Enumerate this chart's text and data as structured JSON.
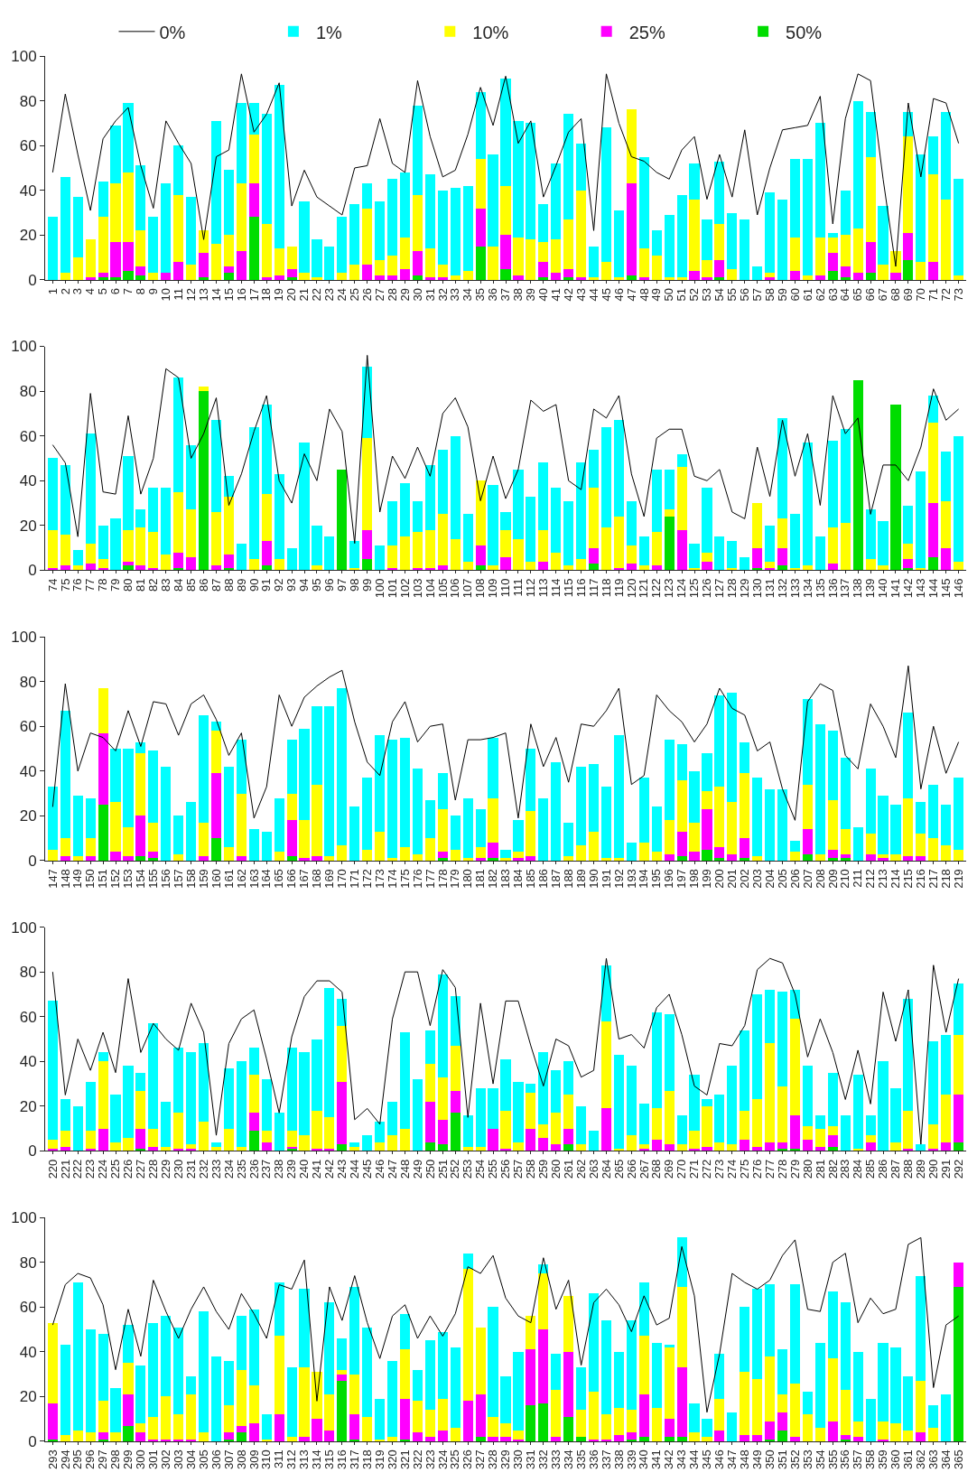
{
  "chart_data": [
    {
      "type": "bar",
      "stacked": true,
      "legend": "top",
      "marker": "none",
      "line_style": "solid",
      "ylim": [
        0,
        100
      ],
      "yticks": [
        0,
        20,
        40,
        60,
        80,
        100
      ],
      "categories": [
        "1",
        "2",
        "3",
        "4",
        "5",
        "6",
        "7",
        "8",
        "9",
        "10",
        "11",
        "12",
        "13",
        "14",
        "15",
        "16",
        "17",
        "18",
        "19",
        "20",
        "21",
        "22",
        "23",
        "24",
        "25",
        "26",
        "27",
        "28",
        "29",
        "30",
        "31",
        "32",
        "33",
        "34",
        "35",
        "36",
        "37",
        "38",
        "39",
        "40",
        "41",
        "42",
        "43",
        "44",
        "45",
        "46",
        "47",
        "48",
        "49",
        "50",
        "51",
        "52",
        "53",
        "54",
        "55",
        "56",
        "57",
        "58",
        "59",
        "60",
        "61",
        "62",
        "63",
        "64",
        "65",
        "66",
        "67",
        "68",
        "69",
        "70",
        "71",
        "72",
        "73"
      ],
      "series": [
        {
          "name": "50%",
          "color": "#00dd00",
          "values": [
            0,
            0,
            0,
            0,
            1,
            1,
            4,
            2,
            0,
            0,
            0,
            0,
            1,
            0,
            3,
            0,
            28,
            0,
            0,
            1,
            0,
            0,
            0,
            0,
            0,
            0,
            0,
            0,
            0,
            2,
            0,
            0,
            0,
            0,
            15,
            0,
            5,
            0,
            0,
            1,
            0,
            1,
            0,
            0,
            0,
            0,
            2,
            0,
            0,
            0,
            0,
            0,
            0,
            1,
            0,
            0,
            0,
            0,
            0,
            0,
            0,
            0,
            4,
            1,
            0,
            3,
            0,
            0,
            9,
            0,
            0,
            0,
            0
          ]
        },
        {
          "name": "25%",
          "color": "#ff00ff",
          "values": [
            0,
            0,
            0,
            1,
            2,
            16,
            13,
            4,
            0,
            3,
            8,
            0,
            11,
            0,
            3,
            13,
            15,
            1,
            2,
            4,
            0,
            0,
            0,
            0,
            0,
            7,
            2,
            2,
            5,
            11,
            1,
            1,
            0,
            0,
            17,
            0,
            15,
            2,
            0,
            7,
            3,
            4,
            1,
            0,
            0,
            0,
            41,
            1,
            0,
            0,
            0,
            4,
            1,
            8,
            0,
            0,
            0,
            1,
            0,
            4,
            0,
            2,
            8,
            5,
            3,
            14,
            0,
            3,
            12,
            0,
            8,
            0,
            0
          ]
        },
        {
          "name": "10%",
          "color": "#ffff00",
          "values": [
            0,
            3,
            10,
            17,
            25,
            26,
            31,
            16,
            3,
            0,
            30,
            7,
            10,
            16,
            14,
            30,
            22,
            24,
            12,
            10,
            3,
            1,
            0,
            3,
            7,
            25,
            7,
            9,
            14,
            25,
            13,
            6,
            2,
            4,
            22,
            15,
            22,
            17,
            18,
            9,
            15,
            22,
            39,
            1,
            8,
            1,
            33,
            13,
            11,
            1,
            1,
            32,
            8,
            16,
            5,
            0,
            0,
            2,
            0,
            15,
            2,
            17,
            7,
            14,
            20,
            38,
            7,
            10,
            43,
            8,
            39,
            36,
            2
          ]
        },
        {
          "name": "1%",
          "color": "#00ffff",
          "values": [
            28,
            43,
            27,
            0,
            16,
            26,
            31,
            29,
            25,
            40,
            22,
            30,
            0,
            55,
            29,
            36,
            14,
            49,
            73,
            0,
            32,
            17,
            15,
            25,
            27,
            11,
            26,
            34,
            29,
            40,
            33,
            33,
            39,
            38,
            30,
            41,
            48,
            52,
            52,
            17,
            34,
            47,
            21,
            14,
            60,
            30,
            0,
            41,
            11,
            28,
            37,
            16,
            18,
            28,
            25,
            27,
            6,
            36,
            36,
            35,
            52,
            51,
            2,
            20,
            57,
            20,
            26,
            0,
            11,
            48,
            17,
            39,
            43
          ]
        },
        {
          "name": "0%",
          "type": "line",
          "color": "#000000",
          "values": [
            48,
            83,
            56,
            31,
            63,
            71,
            77,
            51,
            32,
            71,
            61,
            52,
            18,
            55,
            58,
            92,
            66,
            74,
            88,
            33,
            49,
            37,
            33,
            29,
            50,
            51,
            72,
            52,
            48,
            89,
            64,
            46,
            49,
            65,
            86,
            69,
            91,
            61,
            71,
            37,
            51,
            66,
            72,
            22,
            92,
            70,
            55,
            53,
            48,
            45,
            58,
            64,
            36,
            56,
            37,
            67,
            29,
            50,
            67,
            68,
            69,
            82,
            25,
            72,
            92,
            89,
            45,
            6,
            79,
            46,
            81,
            79,
            61
          ]
        }
      ]
    },
    {
      "type": "bar",
      "stacked": true,
      "marker": "none",
      "line_style": "solid",
      "ylim": [
        0,
        100
      ],
      "yticks": [
        0,
        20,
        40,
        60,
        80,
        100
      ],
      "categories": [
        "74",
        "75",
        "76",
        "77",
        "78",
        "79",
        "80",
        "81",
        "82",
        "83",
        "84",
        "85",
        "86",
        "87",
        "88",
        "89",
        "90",
        "91",
        "92",
        "93",
        "94",
        "95",
        "96",
        "97",
        "98",
        "99",
        "100",
        "101",
        "102",
        "103",
        "104",
        "105",
        "106",
        "107",
        "108",
        "109",
        "110",
        "111",
        "112",
        "113",
        "114",
        "115",
        "116",
        "117",
        "118",
        "119",
        "120",
        "121",
        "122",
        "123",
        "124",
        "125",
        "126",
        "127",
        "128",
        "129",
        "130",
        "131",
        "132",
        "133",
        "134",
        "135",
        "136",
        "137",
        "138",
        "139",
        "140",
        "141",
        "142",
        "143",
        "144",
        "145",
        "146"
      ],
      "series": [
        {
          "color": "#00dd00",
          "values": [
            0,
            0,
            0,
            0,
            0,
            0,
            2,
            0,
            0,
            0,
            1,
            0,
            80,
            0,
            1,
            0,
            0,
            2,
            0,
            0,
            0,
            0,
            0,
            45,
            0,
            5,
            0,
            0,
            0,
            0,
            0,
            0,
            0,
            0,
            2,
            0,
            0,
            0,
            0,
            0,
            0,
            0,
            0,
            3,
            0,
            0,
            0,
            0,
            0,
            24,
            0,
            0,
            0,
            0,
            0,
            0,
            1,
            0,
            2,
            0,
            0,
            0,
            0,
            0,
            85,
            0,
            0,
            74,
            1,
            0,
            6,
            0,
            0
          ]
        },
        {
          "color": "#ff00ff",
          "values": [
            1,
            2,
            0,
            3,
            1,
            0,
            2,
            2,
            1,
            0,
            7,
            6,
            0,
            2,
            6,
            0,
            0,
            11,
            0,
            0,
            0,
            0,
            0,
            0,
            0,
            13,
            0,
            1,
            0,
            1,
            1,
            2,
            0,
            0,
            9,
            0,
            6,
            0,
            0,
            4,
            0,
            0,
            0,
            7,
            0,
            1,
            3,
            0,
            2,
            0,
            18,
            0,
            4,
            0,
            0,
            0,
            9,
            1,
            8,
            0,
            0,
            0,
            3,
            0,
            0,
            0,
            0,
            0,
            4,
            0,
            24,
            10,
            0
          ]
        },
        {
          "color": "#ffff00",
          "values": [
            17,
            14,
            2,
            9,
            4,
            0,
            14,
            17,
            16,
            7,
            27,
            21,
            2,
            24,
            26,
            0,
            5,
            21,
            5,
            0,
            0,
            2,
            0,
            0,
            1,
            41,
            0,
            10,
            15,
            16,
            17,
            23,
            14,
            4,
            29,
            2,
            12,
            14,
            4,
            14,
            8,
            2,
            5,
            27,
            19,
            23,
            8,
            2,
            15,
            3,
            28,
            1,
            4,
            0,
            1,
            0,
            20,
            3,
            13,
            1,
            2,
            0,
            16,
            21,
            0,
            5,
            2,
            0,
            7,
            1,
            36,
            21,
            4
          ]
        },
        {
          "color": "#00ffff",
          "values": [
            32,
            31,
            7,
            49,
            15,
            23,
            33,
            8,
            20,
            30,
            51,
            29,
            0,
            41,
            9,
            12,
            59,
            40,
            38,
            10,
            57,
            18,
            15,
            0,
            12,
            32,
            11,
            20,
            24,
            14,
            29,
            29,
            46,
            21,
            0,
            36,
            8,
            31,
            29,
            30,
            29,
            29,
            43,
            17,
            45,
            43,
            20,
            13,
            28,
            18,
            6,
            11,
            29,
            15,
            12,
            6,
            0,
            16,
            45,
            24,
            55,
            15,
            39,
            42,
            0,
            22,
            20,
            0,
            17,
            43,
            12,
            22,
            56
          ]
        },
        {
          "type": "line",
          "color": "#000000",
          "values": [
            56,
            48,
            15,
            79,
            35,
            34,
            69,
            34,
            50,
            90,
            86,
            50,
            61,
            77,
            29,
            43,
            62,
            78,
            40,
            30,
            52,
            40,
            72,
            62,
            12,
            96,
            26,
            51,
            41,
            55,
            42,
            70,
            77,
            64,
            31,
            51,
            32,
            45,
            76,
            71,
            74,
            40,
            36,
            72,
            68,
            78,
            43,
            24,
            59,
            63,
            63,
            42,
            40,
            45,
            26,
            23,
            55,
            33,
            67,
            42,
            61,
            29,
            78,
            61,
            68,
            25,
            47,
            47,
            40,
            55,
            81,
            67,
            72
          ]
        }
      ]
    },
    {
      "type": "bar",
      "stacked": true,
      "marker": "none",
      "line_style": "solid",
      "ylim": [
        0,
        100
      ],
      "yticks": [
        0,
        20,
        40,
        60,
        80,
        100
      ],
      "categories": [
        "147",
        "148",
        "149",
        "150",
        "151",
        "152",
        "153",
        "154",
        "155",
        "156",
        "157",
        "158",
        "159",
        "160",
        "161",
        "162",
        "163",
        "164",
        "165",
        "166",
        "167",
        "168",
        "169",
        "170",
        "171",
        "172",
        "173",
        "174",
        "175",
        "176",
        "177",
        "178",
        "179",
        "180",
        "181",
        "182",
        "183",
        "184",
        "185",
        "186",
        "187",
        "188",
        "189",
        "190",
        "191",
        "192",
        "193",
        "194",
        "195",
        "196",
        "197",
        "198",
        "199",
        "200",
        "201",
        "202",
        "203",
        "204",
        "205",
        "206",
        "207",
        "208",
        "209",
        "210",
        "211",
        "212",
        "213",
        "214",
        "215",
        "216",
        "217",
        "218",
        "219"
      ],
      "series": [
        {
          "color": "#00dd00",
          "values": [
            0,
            0,
            0,
            0,
            25,
            0,
            0,
            2,
            1,
            0,
            0,
            0,
            0,
            10,
            0,
            0,
            0,
            0,
            0,
            2,
            0,
            0,
            0,
            0,
            0,
            0,
            0,
            0,
            0,
            0,
            0,
            1,
            0,
            0,
            0,
            1,
            0,
            0,
            0,
            0,
            0,
            0,
            0,
            0,
            0,
            0,
            0,
            0,
            0,
            0,
            2,
            0,
            5,
            1,
            0,
            1,
            0,
            0,
            0,
            0,
            3,
            0,
            1,
            1,
            0,
            0,
            0,
            0,
            0,
            0,
            0,
            0,
            0
          ]
        },
        {
          "color": "#ff00ff",
          "values": [
            0,
            2,
            0,
            2,
            32,
            4,
            2,
            18,
            3,
            0,
            0,
            0,
            2,
            29,
            0,
            2,
            0,
            0,
            0,
            16,
            1,
            2,
            0,
            0,
            0,
            0,
            0,
            0,
            0,
            0,
            0,
            3,
            0,
            0,
            1,
            7,
            0,
            1,
            2,
            0,
            0,
            0,
            0,
            0,
            0,
            0,
            0,
            0,
            0,
            3,
            11,
            4,
            18,
            5,
            3,
            9,
            0,
            0,
            0,
            0,
            11,
            0,
            4,
            2,
            0,
            3,
            1,
            0,
            2,
            2,
            0,
            0,
            0
          ]
        },
        {
          "color": "#ffff00",
          "values": [
            5,
            8,
            2,
            8,
            20,
            22,
            13,
            28,
            13,
            0,
            3,
            0,
            15,
            19,
            6,
            28,
            0,
            0,
            4,
            12,
            17,
            32,
            2,
            7,
            0,
            5,
            13,
            1,
            6,
            3,
            10,
            19,
            5,
            1,
            5,
            20,
            1,
            3,
            20,
            0,
            0,
            2,
            7,
            13,
            1,
            1,
            0,
            8,
            4,
            15,
            23,
            13,
            8,
            27,
            23,
            29,
            2,
            0,
            0,
            4,
            20,
            3,
            22,
            11,
            0,
            9,
            2,
            3,
            26,
            10,
            10,
            7,
            5
          ]
        },
        {
          "color": "#00ffff",
          "values": [
            28,
            57,
            27,
            18,
            0,
            24,
            35,
            5,
            32,
            42,
            17,
            26,
            48,
            4,
            36,
            24,
            14,
            13,
            24,
            24,
            41,
            35,
            67,
            70,
            24,
            32,
            43,
            53,
            49,
            38,
            17,
            16,
            15,
            27,
            17,
            27,
            4,
            14,
            28,
            28,
            44,
            15,
            35,
            30,
            32,
            55,
            8,
            29,
            20,
            36,
            16,
            23,
            17,
            41,
            49,
            14,
            35,
            32,
            32,
            5,
            38,
            58,
            31,
            32,
            15,
            29,
            26,
            22,
            38,
            14,
            24,
            18,
            32
          ]
        },
        {
          "type": "line",
          "color": "#000000",
          "values": [
            24,
            79,
            40,
            57,
            55,
            49,
            67,
            51,
            71,
            70,
            56,
            70,
            74,
            63,
            47,
            57,
            19,
            33,
            74,
            60,
            73,
            78,
            82,
            85,
            62,
            44,
            38,
            62,
            71,
            53,
            60,
            61,
            27,
            54,
            54,
            55,
            57,
            19,
            61,
            42,
            55,
            35,
            61,
            60,
            67,
            77,
            34,
            38,
            74,
            67,
            62,
            53,
            61,
            77,
            68,
            65,
            49,
            53,
            32,
            18,
            71,
            79,
            76,
            47,
            41,
            70,
            60,
            46,
            87,
            32,
            60,
            39,
            53
          ]
        }
      ]
    },
    {
      "type": "bar",
      "stacked": true,
      "marker": "none",
      "line_style": "solid",
      "ylim": [
        0,
        100
      ],
      "yticks": [
        0,
        20,
        40,
        60,
        80,
        100
      ],
      "categories": [
        "220",
        "221",
        "222",
        "223",
        "224",
        "225",
        "226",
        "227",
        "228",
        "229",
        "230",
        "231",
        "232",
        "233",
        "234",
        "235",
        "236",
        "237",
        "238",
        "239",
        "240",
        "241",
        "242",
        "243",
        "244",
        "245",
        "246",
        "247",
        "248",
        "249",
        "250",
        "251",
        "252",
        "253",
        "254",
        "255",
        "256",
        "257",
        "258",
        "259",
        "260",
        "261",
        "262",
        "263",
        "264",
        "265",
        "266",
        "267",
        "268",
        "269",
        "270",
        "271",
        "272",
        "273",
        "274",
        "275",
        "276",
        "277",
        "278",
        "279",
        "280",
        "281",
        "282",
        "283",
        "284",
        "285",
        "286",
        "287",
        "288",
        "289",
        "290",
        "291",
        "292"
      ],
      "series": [
        {
          "color": "#00dd00",
          "values": [
            0,
            0,
            0,
            0,
            0,
            0,
            0,
            1,
            0,
            0,
            0,
            0,
            0,
            0,
            0,
            0,
            9,
            0,
            0,
            1,
            0,
            0,
            0,
            3,
            0,
            0,
            0,
            0,
            0,
            0,
            4,
            3,
            17,
            0,
            0,
            0,
            0,
            0,
            0,
            0,
            0,
            3,
            0,
            0,
            0,
            0,
            0,
            0,
            0,
            0,
            0,
            0,
            0,
            0,
            0,
            0,
            0,
            0,
            1,
            1,
            0,
            0,
            2,
            0,
            0,
            0,
            0,
            0,
            0,
            0,
            0,
            0,
            4
          ]
        },
        {
          "color": "#ff00ff",
          "values": [
            1,
            2,
            0,
            1,
            10,
            0,
            0,
            9,
            2,
            0,
            1,
            1,
            0,
            0,
            0,
            0,
            8,
            4,
            0,
            1,
            0,
            1,
            1,
            28,
            0,
            0,
            0,
            0,
            0,
            0,
            18,
            11,
            10,
            0,
            0,
            10,
            1,
            0,
            10,
            6,
            3,
            7,
            0,
            0,
            19,
            0,
            0,
            1,
            5,
            3,
            0,
            1,
            2,
            0,
            0,
            5,
            2,
            4,
            3,
            15,
            5,
            2,
            5,
            0,
            0,
            4,
            0,
            0,
            1,
            0,
            1,
            4,
            21
          ]
        },
        {
          "color": "#ffff00",
          "values": [
            4,
            7,
            0,
            8,
            30,
            4,
            6,
            17,
            8,
            2,
            16,
            2,
            13,
            2,
            10,
            2,
            17,
            5,
            0,
            7,
            7,
            17,
            14,
            25,
            2,
            0,
            4,
            7,
            10,
            0,
            17,
            19,
            20,
            2,
            2,
            0,
            17,
            4,
            16,
            6,
            14,
            15,
            3,
            0,
            39,
            1,
            7,
            2,
            14,
            24,
            3,
            8,
            18,
            4,
            3,
            13,
            21,
            44,
            25,
            43,
            6,
            8,
            4,
            0,
            1,
            3,
            0,
            4,
            17,
            0,
            11,
            21,
            27
          ]
        },
        {
          "color": "#00ffff",
          "values": [
            62,
            14,
            20,
            22,
            4,
            21,
            32,
            8,
            47,
            20,
            29,
            41,
            35,
            2,
            27,
            38,
            12,
            23,
            17,
            37,
            37,
            32,
            58,
            12,
            2,
            7,
            9,
            15,
            43,
            32,
            15,
            46,
            22,
            14,
            26,
            18,
            23,
            27,
            4,
            32,
            19,
            15,
            17,
            9,
            25,
            42,
            31,
            18,
            43,
            34,
            13,
            25,
            3,
            21,
            35,
            36,
            47,
            24,
            42,
            13,
            27,
            6,
            24,
            16,
            33,
            9,
            40,
            24,
            50,
            3,
            37,
            27,
            23
          ]
        },
        {
          "type": "line",
          "color": "#000000",
          "values": [
            80,
            25,
            50,
            36,
            53,
            35,
            77,
            44,
            57,
            50,
            45,
            66,
            53,
            7,
            48,
            59,
            63,
            41,
            17,
            51,
            69,
            76,
            76,
            71,
            14,
            19,
            12,
            59,
            80,
            80,
            56,
            81,
            73,
            15,
            66,
            30,
            67,
            67,
            47,
            29,
            50,
            47,
            33,
            36,
            86,
            50,
            52,
            46,
            64,
            70,
            52,
            29,
            25,
            48,
            47,
            56,
            81,
            86,
            84,
            70,
            42,
            59,
            44,
            23,
            45,
            21,
            71,
            49,
            72,
            3,
            83,
            53,
            77
          ]
        }
      ]
    },
    {
      "type": "bar",
      "stacked": true,
      "marker": "none",
      "line_style": "solid",
      "ylim": [
        0,
        100
      ],
      "yticks": [
        0,
        20,
        40,
        60,
        80,
        100
      ],
      "categories": [
        "293",
        "294",
        "295",
        "296",
        "297",
        "298",
        "299",
        "300",
        "301",
        "302",
        "303",
        "304",
        "305",
        "306",
        "307",
        "308",
        "309",
        "310",
        "311",
        "312",
        "313",
        "314",
        "315",
        "316",
        "317",
        "318",
        "319",
        "320",
        "321",
        "322",
        "323",
        "324",
        "325",
        "326",
        "327",
        "328",
        "329",
        "330",
        "331",
        "332",
        "333",
        "334",
        "335",
        "336",
        "337",
        "338",
        "339",
        "340",
        "341",
        "342",
        "343",
        "344",
        "345",
        "346",
        "347",
        "348",
        "349",
        "350",
        "351",
        "352",
        "353",
        "354",
        "355",
        "356",
        "357",
        "358",
        "359",
        "360",
        "361",
        "362",
        "363",
        "364",
        "365"
      ],
      "series": [
        {
          "color": "#00dd00",
          "values": [
            1,
            0,
            0,
            0,
            1,
            0,
            7,
            0,
            0,
            0,
            0,
            0,
            0,
            0,
            1,
            4,
            0,
            0,
            0,
            0,
            0,
            0,
            0,
            27,
            1,
            0,
            0,
            0,
            1,
            0,
            0,
            0,
            0,
            0,
            2,
            0,
            0,
            0,
            16,
            17,
            0,
            11,
            2,
            0,
            0,
            0,
            1,
            2,
            0,
            2,
            2,
            0,
            0,
            0,
            0,
            0,
            0,
            1,
            5,
            0,
            0,
            0,
            0,
            1,
            0,
            0,
            0,
            0,
            0,
            0,
            0,
            0,
            69
          ]
        },
        {
          "color": "#ff00ff",
          "values": [
            16,
            0,
            0,
            0,
            3,
            0,
            14,
            4,
            1,
            1,
            1,
            1,
            0,
            0,
            3,
            3,
            8,
            0,
            12,
            0,
            2,
            10,
            5,
            3,
            11,
            0,
            0,
            0,
            18,
            4,
            2,
            5,
            0,
            18,
            19,
            2,
            2,
            1,
            25,
            33,
            2,
            29,
            0,
            1,
            1,
            3,
            3,
            19,
            0,
            8,
            31,
            0,
            0,
            5,
            0,
            3,
            3,
            8,
            8,
            2,
            0,
            0,
            9,
            2,
            2,
            0,
            1,
            0,
            0,
            4,
            0,
            0,
            11
          ]
        },
        {
          "color": "#ffff00",
          "values": [
            36,
            3,
            5,
            4,
            14,
            4,
            14,
            4,
            10,
            19,
            11,
            20,
            4,
            0,
            12,
            25,
            17,
            1,
            35,
            2,
            31,
            21,
            16,
            2,
            18,
            11,
            1,
            2,
            22,
            14,
            12,
            14,
            6,
            59,
            30,
            9,
            6,
            4,
            15,
            25,
            21,
            25,
            12,
            21,
            11,
            12,
            10,
            26,
            15,
            32,
            36,
            4,
            2,
            14,
            0,
            28,
            25,
            29,
            8,
            24,
            12,
            6,
            28,
            20,
            7,
            0,
            8,
            8,
            5,
            23,
            6,
            0,
            0
          ]
        },
        {
          "color": "#00ffff",
          "values": [
            0,
            40,
            66,
            46,
            30,
            20,
            17,
            26,
            42,
            36,
            39,
            8,
            54,
            38,
            20,
            24,
            34,
            11,
            24,
            31,
            35,
            0,
            41,
            14,
            39,
            40,
            18,
            34,
            16,
            14,
            31,
            30,
            36,
            7,
            0,
            49,
            21,
            35,
            0,
            4,
            16,
            0,
            19,
            44,
            42,
            25,
            40,
            24,
            29,
            1,
            22,
            13,
            8,
            20,
            13,
            29,
            40,
            32,
            20,
            44,
            10,
            38,
            30,
            39,
            31,
            19,
            35,
            34,
            24,
            47,
            10,
            21,
            0
          ]
        },
        {
          "type": "line",
          "color": "#000000",
          "values": [
            52,
            70,
            75,
            73,
            61,
            32,
            59,
            38,
            72,
            58,
            46,
            59,
            69,
            58,
            50,
            66,
            57,
            46,
            70,
            68,
            81,
            18,
            69,
            54,
            74,
            53,
            37,
            56,
            61,
            46,
            56,
            47,
            57,
            78,
            75,
            83,
            64,
            56,
            53,
            82,
            59,
            72,
            34,
            62,
            68,
            61,
            49,
            65,
            52,
            55,
            87,
            65,
            13,
            39,
            75,
            71,
            68,
            72,
            83,
            90,
            59,
            58,
            80,
            84,
            53,
            64,
            57,
            59,
            88,
            91,
            24,
            52,
            56
          ]
        }
      ]
    }
  ]
}
